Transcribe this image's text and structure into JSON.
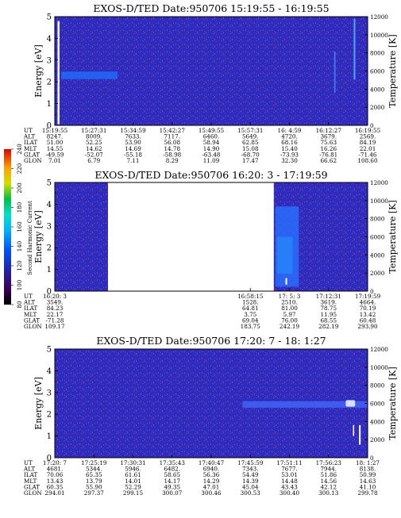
{
  "colorbar": {
    "label": "Second Harmonic Current",
    "ticks": [
      "80",
      "100",
      "120",
      "140",
      "160",
      "180",
      "200",
      "220",
      "240"
    ]
  },
  "ephemeris_row_labels": [
    "UT",
    "ALT",
    "ILAT",
    "MLT",
    "GLAT",
    "GLON"
  ],
  "chart_data": [
    {
      "type": "heatmap",
      "title": "EXOS-D/TED  Date:950706  15:19:55 - 16:19:55",
      "ylabel": "Energy [eV]",
      "ylabel_right": "Temperature [K]",
      "yticks": [
        "0",
        "1",
        "2",
        "3",
        "4",
        "5"
      ],
      "yticks_right": [
        "0",
        "2000",
        "4000",
        "6000",
        "8000",
        "10000",
        "12000"
      ],
      "ylim": [
        0,
        5
      ],
      "ylim_right": [
        0,
        12000
      ],
      "data_gaps": [],
      "features": [
        {
          "type": "band",
          "t_from": 0.02,
          "t_to": 0.2,
          "e_center": 2.3,
          "e_width": 0.35,
          "color": "#2266f2"
        },
        {
          "type": "spike",
          "t": 0.012,
          "e_from": 0.05,
          "e_to": 4.8,
          "color": "#f4f4ff",
          "w": 2.5
        },
        {
          "type": "spike",
          "t": 0.895,
          "e_from": 1.5,
          "e_to": 3.4,
          "color": "#3a8cff",
          "w": 1.5
        },
        {
          "type": "spike",
          "t": 0.958,
          "e_from": 2.1,
          "e_to": 4.9,
          "color": "#4aa6ff",
          "w": 2
        }
      ],
      "ephemeris": [
        [
          "15:19:55",
          "15:27:31",
          "15:34:59",
          "15:42:27",
          "15:49:55",
          "15:57:31",
          "16: 4:59",
          "16:12:27",
          "16:19:55"
        ],
        [
          "8247.",
          "8009.",
          "7633.",
          "7117.",
          "6460.",
          "5649.",
          "4720.",
          "3679.",
          "2569."
        ],
        [
          "51.00",
          "52.25",
          "53.90",
          "56.08",
          "58.94",
          "62.85",
          "68.16",
          "75.63",
          "84.19"
        ],
        [
          "14.55",
          "14.62",
          "14.69",
          "14.78",
          "14.90",
          "15.08",
          "15.40",
          "16.26",
          "22.01"
        ],
        [
          "-49.59",
          "-52.07",
          "-55.18",
          "-58.98",
          "-63.48",
          "-68.70",
          "-73.93",
          "-76.81",
          "-71.46"
        ],
        [
          "7.01",
          "6.79",
          "7.11",
          "8.29",
          "11.09",
          "17.47",
          "32.30",
          "66.62",
          "108.60"
        ]
      ]
    },
    {
      "type": "heatmap",
      "title": "EXOS-D/TED  Date:950706  16:20: 3 - 17:19:59",
      "ylabel": "Energy [eV]",
      "ylabel_right": "Temperature [K]",
      "yticks": [
        "0",
        "1",
        "2",
        "3",
        "4",
        "5"
      ],
      "yticks_right": [
        "0",
        "2000",
        "4000",
        "6000",
        "8000",
        "10000",
        "12000"
      ],
      "ylim": [
        0,
        5
      ],
      "ylim_right": [
        0,
        12000
      ],
      "data_gaps": [
        [
          0.17,
          0.7
        ]
      ],
      "features": [
        {
          "type": "blob",
          "t_from": 0.71,
          "t_to": 0.76,
          "e_from": 0.8,
          "e_to": 2.5,
          "color": "#14d6ea"
        },
        {
          "type": "blob",
          "t_from": 0.705,
          "t_to": 0.78,
          "e_from": 0.2,
          "e_to": 3.9,
          "color": "#2a70ff"
        },
        {
          "type": "spike",
          "t": 0.74,
          "e_from": 0.3,
          "e_to": 0.6,
          "color": "#ffffff",
          "w": 2
        }
      ],
      "ephemeris": [
        [
          "16:20: 3",
          "",
          "",
          "",
          "",
          "16:58:15",
          "17: 5: 3",
          "17:12:31",
          "17:19:59"
        ],
        [
          "3549.",
          "",
          "",
          "",
          "",
          "1528.",
          "2510.",
          "3619.",
          "4664."
        ],
        [
          "84.23",
          "",
          "",
          "",
          "",
          "64.81",
          "81.00",
          "78.75",
          "70.19"
        ],
        [
          "22.17",
          "",
          "",
          "",
          "",
          "3.75",
          "5.97",
          "11.95",
          "13.42"
        ],
        [
          "-71.28",
          "",
          "",
          "",
          "",
          "69.04",
          "76.00",
          "68.55",
          "60.48"
        ],
        [
          "109.17",
          "",
          "",
          "",
          "",
          "183.75",
          "242.19",
          "282.19",
          "293.90"
        ]
      ]
    },
    {
      "type": "heatmap",
      "title": "EXOS-D/TED  Date:950706  17:20: 7 - 18: 1:27",
      "ylabel": "Energy [eV]",
      "ylabel_right": "Temperature [K]",
      "yticks": [
        "0",
        "1",
        "2",
        "3",
        "4",
        "5"
      ],
      "yticks_right": [
        "0",
        "2000",
        "4000",
        "6000",
        "8000",
        "10000",
        "12000"
      ],
      "ylim": [
        0,
        5
      ],
      "ylim_right": [
        0,
        12000
      ],
      "data_gaps": [],
      "features": [
        {
          "type": "band",
          "t_from": 0.6,
          "t_to": 1.0,
          "e_center": 2.45,
          "e_width": 0.3,
          "color": "#3f62f2"
        },
        {
          "type": "blob",
          "t_from": 0.93,
          "t_to": 0.96,
          "e_from": 2.35,
          "e_to": 2.65,
          "color": "#ffffff"
        },
        {
          "type": "spike",
          "t": 0.975,
          "e_from": 0.6,
          "e_to": 1.5,
          "color": "#ffffff",
          "w": 2
        },
        {
          "type": "spike",
          "t": 0.955,
          "e_from": 1.0,
          "e_to": 1.5,
          "color": "#ffffff",
          "w": 1.5
        }
      ],
      "ephemeris": [
        [
          "17:20: 7",
          "17:25:19",
          "17:30:31",
          "17:35:43",
          "17:40:47",
          "17:45:59",
          "17:51:11",
          "17:56:23",
          "18: 1:27"
        ],
        [
          "4681.",
          "5344.",
          "5946.",
          "6482.",
          "6940.",
          "7343.",
          "7677.",
          "7944.",
          "8138."
        ],
        [
          "70.06",
          "65.35",
          "61.61",
          "58.65",
          "56.36",
          "54.49",
          "53.01",
          "51.86",
          "50.99"
        ],
        [
          "13.43",
          "13.79",
          "14.01",
          "14.17",
          "14.29",
          "14.39",
          "14.48",
          "14.56",
          "14.63"
        ],
        [
          "60.35",
          "55.90",
          "52.29",
          "49.35",
          "47.01",
          "45.04",
          "43.43",
          "42.12",
          "41.10"
        ],
        [
          "294.01",
          "297.37",
          "299.15",
          "300.07",
          "300.46",
          "300.53",
          "300.40",
          "300.13",
          "299.78"
        ]
      ]
    }
  ]
}
